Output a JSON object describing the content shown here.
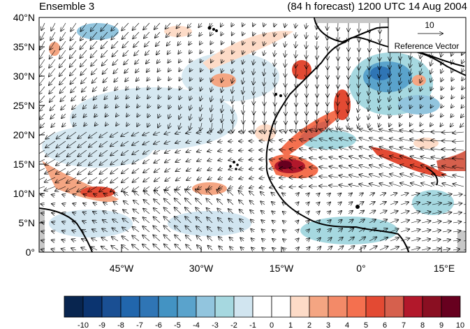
{
  "title_left": "Ensemble 3",
  "title_right": "(84 h forecast) 1200 UTC 14 Aug 2004",
  "reference_vector": {
    "magnitude": "10",
    "label": "Reference Vector"
  },
  "lat_ticks": [
    "40°N",
    "35°N",
    "30°N",
    "25°N",
    "20°N",
    "15°N",
    "10°N",
    "5°N",
    "0°"
  ],
  "lon_ticks": [
    "45°W",
    "30°W",
    "15°W",
    "0°",
    "15°E"
  ],
  "colorbar": {
    "labels": [
      "-10",
      "-9",
      "-8",
      "-7",
      "-6",
      "-5",
      "-4",
      "-3",
      "-2",
      "-1",
      "0",
      "1",
      "2",
      "3",
      "4",
      "5",
      "6",
      "7",
      "8",
      "9",
      "10"
    ],
    "colors": [
      "#08254f",
      "#0b3470",
      "#1a4f93",
      "#2166ac",
      "#2f75b5",
      "#4393c3",
      "#5aa3cc",
      "#92c5de",
      "#a6d8e0",
      "#d1e5f0",
      "#ffffff",
      "#ffffff",
      "#fddbc7",
      "#f4a582",
      "#f38a68",
      "#f4704f",
      "#e34a33",
      "#d6604d",
      "#b2182b",
      "#8a0f22",
      "#67001f"
    ]
  },
  "map": {
    "lat_range": [
      0,
      40
    ],
    "lon_range": [
      -57,
      20
    ],
    "ocean_color": "#ffffff",
    "land_fill_color": "#c8c8c8"
  }
}
